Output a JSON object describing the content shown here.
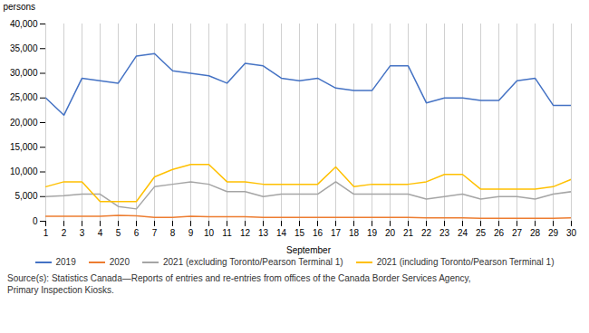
{
  "chart_data": {
    "type": "line",
    "x": [
      1,
      2,
      3,
      4,
      5,
      6,
      7,
      8,
      9,
      10,
      11,
      12,
      13,
      14,
      15,
      16,
      17,
      18,
      19,
      20,
      21,
      22,
      23,
      24,
      25,
      26,
      27,
      28,
      29,
      30
    ],
    "series": [
      {
        "name": "2019",
        "color": "#4472C4",
        "values": [
          25000,
          21500,
          29000,
          28500,
          28000,
          33500,
          34000,
          30500,
          30000,
          29500,
          28000,
          32000,
          31500,
          29000,
          28500,
          29000,
          27000,
          26500,
          26500,
          31500,
          31500,
          24000,
          25000,
          25000,
          24500,
          24500,
          28500,
          29000,
          23500,
          23500
        ]
      },
      {
        "name": "2020",
        "color": "#ED7D31",
        "values": [
          1000,
          1000,
          1000,
          1000,
          1200,
          1100,
          800,
          800,
          1000,
          900,
          900,
          900,
          800,
          800,
          800,
          800,
          800,
          800,
          800,
          800,
          800,
          700,
          700,
          700,
          600,
          600,
          600,
          600,
          600,
          700
        ]
      },
      {
        "name": "2021 (excluding Toronto/Pearson Terminal 1)",
        "color": "#A5A5A5",
        "values": [
          5000,
          5200,
          5500,
          5500,
          3000,
          2500,
          7000,
          7500,
          8000,
          7500,
          6000,
          6000,
          5000,
          5500,
          5500,
          5500,
          8000,
          5500,
          5500,
          5500,
          5500,
          4500,
          5000,
          5500,
          4500,
          5000,
          5000,
          4500,
          5500,
          6000
        ]
      },
      {
        "name": "2021 (including Toronto/Pearson Terminal 1)",
        "color": "#FFC000",
        "values": [
          7000,
          8000,
          8000,
          4000,
          4000,
          4000,
          9000,
          10500,
          11500,
          11500,
          8000,
          8000,
          7500,
          7500,
          7500,
          7500,
          11000,
          7000,
          7500,
          7500,
          7500,
          8000,
          9500,
          9500,
          6500,
          6500,
          6500,
          6500,
          7000,
          8500
        ]
      }
    ],
    "x_label": "September",
    "y_label": "persons",
    "xlim": [
      1,
      30
    ],
    "xticks": [
      1,
      2,
      3,
      4,
      5,
      6,
      7,
      8,
      9,
      10,
      11,
      12,
      13,
      14,
      15,
      16,
      17,
      18,
      19,
      20,
      21,
      22,
      23,
      24,
      25,
      26,
      27,
      28,
      29,
      30
    ],
    "ylim": [
      0,
      40000
    ],
    "yticks": [
      0,
      {
        "value": 5000,
        "label": "5,000"
      },
      {
        "value": 10000,
        "label": "10,000"
      },
      {
        "value": 15000,
        "label": "15,000"
      },
      {
        "value": 20000,
        "label": "20,000"
      },
      {
        "value": 25000,
        "label": "25,000"
      },
      {
        "value": 30000,
        "label": "30,000"
      },
      {
        "value": 35000,
        "label": "35,000"
      },
      {
        "value": 40000,
        "label": "40,000"
      }
    ],
    "grid": "x",
    "legend": "bottom",
    "caption": "Source(s): Statistics Canada—Reports of entries and re-entries from offices of the Canada Border Services Agency,\nPrimary Inspection Kiosks."
  }
}
